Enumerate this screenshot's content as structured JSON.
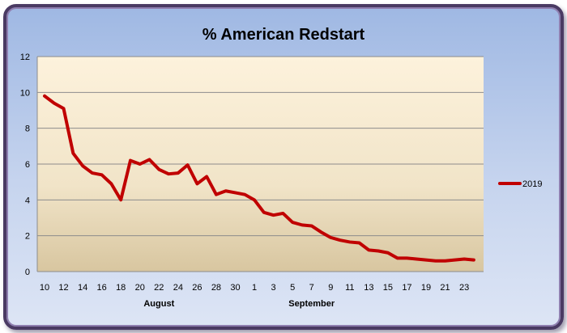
{
  "chart_data": {
    "type": "line",
    "title": "% American Redstart",
    "xlabel": "",
    "ylabel": "",
    "ylim": [
      0,
      12
    ],
    "yticks": [
      0,
      2,
      4,
      6,
      8,
      10,
      12
    ],
    "x_tick_labels": [
      "10",
      "12",
      "14",
      "16",
      "18",
      "20",
      "22",
      "24",
      "26",
      "28",
      "30",
      "1",
      "3",
      "5",
      "7",
      "9",
      "11",
      "13",
      "15",
      "17",
      "19",
      "21",
      "23"
    ],
    "month_labels": [
      {
        "label": "August",
        "under_tick": "22"
      },
      {
        "label": "September",
        "under_tick": "7"
      }
    ],
    "legend": {
      "position": "right"
    },
    "grid": true,
    "series": [
      {
        "name": "2019",
        "color": "#c00000",
        "values": [
          9.8,
          9.4,
          9.1,
          6.6,
          5.9,
          5.5,
          5.4,
          4.9,
          4.0,
          6.2,
          6.0,
          6.25,
          5.7,
          5.45,
          5.5,
          5.95,
          4.9,
          5.3,
          4.3,
          4.5,
          4.4,
          4.3,
          4.0,
          3.3,
          3.15,
          3.25,
          2.75,
          2.6,
          2.55,
          2.2,
          1.9,
          1.75,
          1.65,
          1.6,
          1.2,
          1.15,
          1.05,
          0.75,
          0.75,
          0.7,
          0.65,
          0.6,
          0.6,
          0.65,
          0.7,
          0.65
        ]
      }
    ]
  }
}
